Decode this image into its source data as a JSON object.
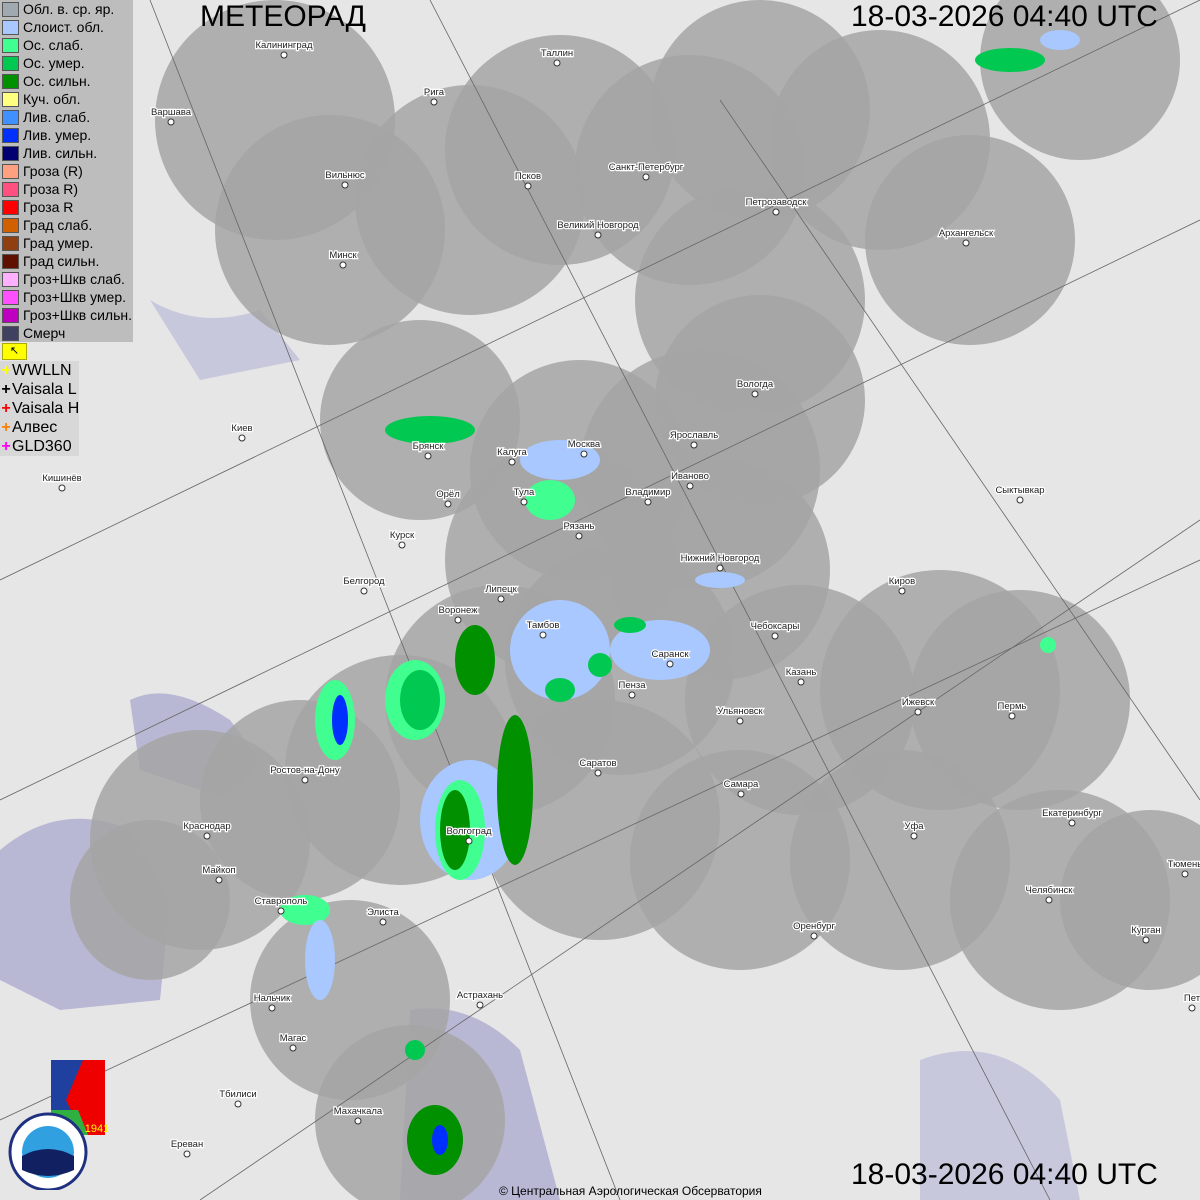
{
  "header": {
    "title": "МЕТЕОРАД",
    "timestamp_top": "18-03-2026  04:40 UTC",
    "timestamp_bottom": "18-03-2026  04:40 UTC"
  },
  "legend": [
    {
      "label": "Обл. в. ср. яр.",
      "color": "#a0a8b0"
    },
    {
      "label": "Слоист. обл.",
      "color": "#a8c8ff"
    },
    {
      "label": "Ос. слаб.",
      "color": "#40ff90"
    },
    {
      "label": "Ос. умер.",
      "color": "#00c850"
    },
    {
      "label": "Ос. сильн.",
      "color": "#009000"
    },
    {
      "label": "Куч. обл.",
      "color": "#ffff80"
    },
    {
      "label": "Лив. слаб.",
      "color": "#4090ff"
    },
    {
      "label": "Лив. умер.",
      "color": "#0030ff"
    },
    {
      "label": "Лив. сильн.",
      "color": "#000070"
    },
    {
      "label": "Гроза (R)",
      "color": "#ffa080"
    },
    {
      "label": "Гроза R)",
      "color": "#ff5080"
    },
    {
      "label": "Гроза R",
      "color": "#ff0000"
    },
    {
      "label": "Град слаб.",
      "color": "#d06000"
    },
    {
      "label": "Град умер.",
      "color": "#904010"
    },
    {
      "label": "Град сильн.",
      "color": "#601000"
    },
    {
      "label": "Гроз+Шкв слаб.",
      "color": "#ffb0ff"
    },
    {
      "label": "Гроз+Шкв умер.",
      "color": "#ff50ff"
    },
    {
      "label": "Гроз+Шкв сильн.",
      "color": "#c000c0"
    },
    {
      "label": "Смерч",
      "color": "#404060"
    }
  ],
  "lightning_toggle_icon": "flag-icon",
  "lightning": [
    {
      "label": "WWLLN",
      "color": "#ffff00"
    },
    {
      "label": "Vaisala L",
      "color": "#000000"
    },
    {
      "label": "Vaisala H",
      "color": "#ff0000"
    },
    {
      "label": "Алвес",
      "color": "#ff8000"
    },
    {
      "label": "GLD360",
      "color": "#ff00ff"
    }
  ],
  "cities": [
    "Калининград",
    "Таллин",
    "Рига",
    "Варшава",
    "Вильнюс",
    "Псков",
    "Санкт-Петербург",
    "Петрозаводск",
    "Архангельск",
    "Великий Новгород",
    "Минск",
    "Вологда",
    "Ярославль",
    "Киев",
    "Брянск",
    "Калуга",
    "Москва",
    "Иваново",
    "Владимир",
    "Тула",
    "Рязань",
    "Орёл",
    "Кишинёв",
    "Сыктывкар",
    "Курск",
    "Нижний Новгород",
    "Белгород",
    "Липецк",
    "Киров",
    "Воронеж",
    "Тамбов",
    "Чебоксары",
    "Саранск",
    "Казань",
    "Пенза",
    "Ижевск",
    "Пермь",
    "Ульяновск",
    "Ростов-на-Дону",
    "Саратов",
    "Самара",
    "Краснодар",
    "Волгоград",
    "Уфа",
    "Екатеринбург",
    "Майкоп",
    "Тюмень",
    "Челябинск",
    "Ставрополь",
    "Элиста",
    "Оренбург",
    "Курган",
    "Астрахань",
    "Нальчик",
    "Магас",
    "Тбилиси",
    "Махачкала",
    "Ереван",
    "Пет"
  ],
  "logos": {
    "cao": "ЦАО 1941",
    "roshydromet": "РОСГИДРОМЕТ ROSHYDROMET"
  },
  "footer": {
    "copyright": "© Центральная Аэрологическая Обсерватория"
  }
}
